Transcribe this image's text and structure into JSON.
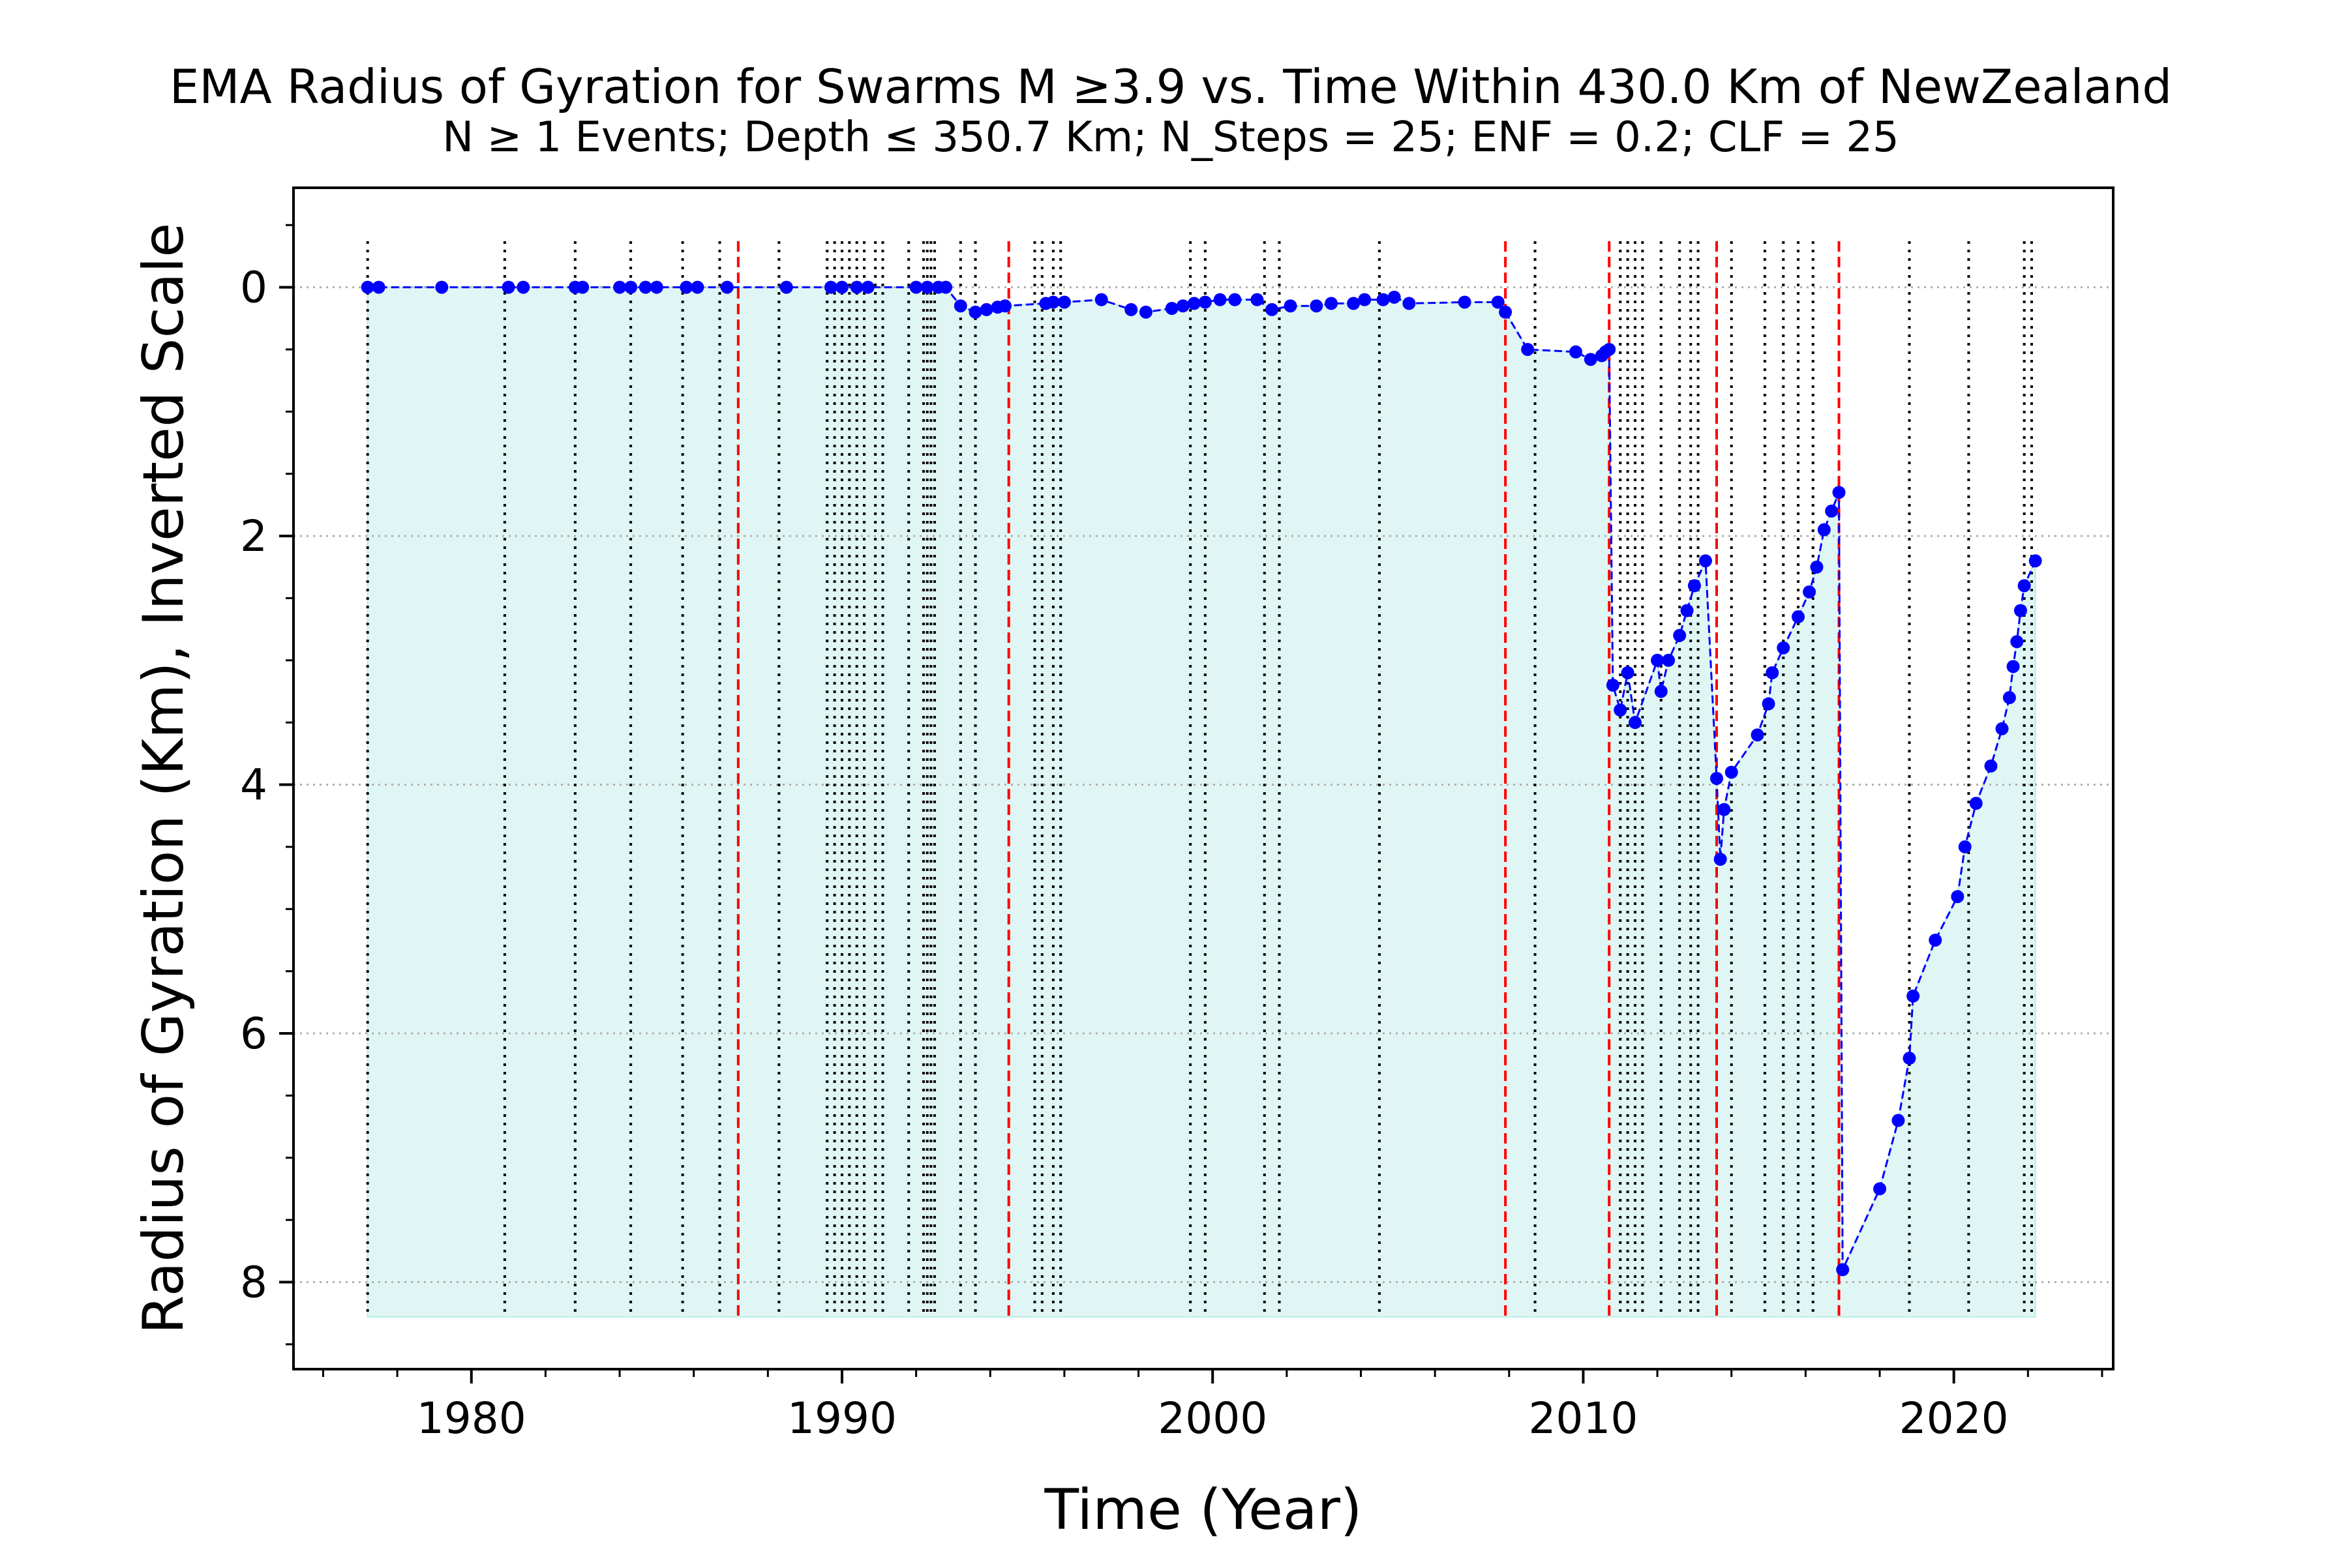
{
  "chart_data": {
    "type": "line",
    "title": "EMA Radius of Gyration for Swarms M $\\geq$3.9 vs. Time Within 430.0 Km of NewZealand",
    "title_display": "EMA Radius of Gyration for Swarms M  ≥3.9 vs. Time Within 430.0 Km of NewZealand",
    "subtitle": "N  ≥  1 Events;  Depth  ≤  350.7 Km; N_Steps = 25; ENF = 0.2; CLF = 25",
    "xlabel": "Time (Year)",
    "ylabel": "Radius of Gyration (Km), Inverted Scale",
    "xlim": [
      1975.2,
      2024.3
    ],
    "ylim": [
      8.7,
      -0.8
    ],
    "y_inverted": true,
    "x_ticks": [
      1980,
      1990,
      2000,
      2010,
      2020
    ],
    "y_ticks": [
      0,
      2,
      4,
      6,
      8
    ],
    "grid": "horizontal dotted",
    "colors": {
      "line": "#0000ff",
      "marker": "#0000ff",
      "fill": "#e0f6f4",
      "event_line": "#000000",
      "major_event_line": "#ff0000",
      "grid": "#b0b0b0"
    },
    "fill_baseline": 8.28,
    "event_lines_black": [
      1977.2,
      1980.9,
      1982.8,
      1984.3,
      1985.7,
      1986.7,
      1988.3,
      1989.6,
      1989.8,
      1990.0,
      1990.2,
      1990.4,
      1990.6,
      1990.9,
      1991.1,
      1991.8,
      1992.2,
      1992.3,
      1992.4,
      1992.5,
      1993.2,
      1993.6,
      1995.2,
      1995.4,
      1995.7,
      1995.9,
      1999.4,
      1999.8,
      2001.4,
      2001.8,
      2004.5,
      2008.7,
      2011.0,
      2011.2,
      2011.4,
      2011.6,
      2012.1,
      2012.6,
      2012.9,
      2013.1,
      2014.0,
      2014.9,
      2015.4,
      2015.8,
      2016.2,
      2018.8,
      2020.4,
      2021.9,
      2022.1
    ],
    "event_lines_red": [
      1987.2,
      1994.5,
      2007.9,
      2010.7,
      2013.6,
      2016.9
    ],
    "series": [
      {
        "x": [
          1977.2,
          1977.5,
          1979.2,
          1981.0,
          1981.4,
          1982.8,
          1983.0,
          1984.0,
          1984.3,
          1984.7,
          1985.0,
          1985.8,
          1986.1,
          1986.9,
          1988.5,
          1989.7,
          1990.0,
          1990.4,
          1990.7,
          1992.0,
          1992.3,
          1992.6,
          1992.8,
          1993.2,
          1993.6,
          1993.9,
          1994.2,
          1994.4,
          1995.5,
          1995.7,
          1996.0,
          1997.0,
          1997.8,
          1998.2,
          1998.9,
          1999.2,
          1999.5,
          1999.8,
          2000.2,
          2000.6,
          2001.2,
          2001.6,
          2002.1,
          2002.8,
          2003.2,
          2003.8,
          2004.1,
          2004.6,
          2004.9,
          2005.3,
          2006.8,
          2007.7,
          2007.9,
          2008.5,
          2009.8,
          2010.2,
          2010.5,
          2010.6,
          2010.7,
          2010.8,
          2011.0,
          2011.2,
          2011.4,
          2012.0,
          2012.1,
          2012.3,
          2012.6,
          2012.8,
          2013.0,
          2013.3,
          2013.6,
          2013.7,
          2013.8,
          2014.0,
          2014.7,
          2015.0,
          2015.1,
          2015.4,
          2015.8,
          2016.1,
          2016.3,
          2016.5,
          2016.7,
          2016.9,
          2017.0,
          2018.0,
          2018.5,
          2018.8,
          2018.9,
          2019.5,
          2020.1,
          2020.3,
          2020.6,
          2021.0,
          2021.3,
          2021.5,
          2021.6,
          2021.7,
          2021.8,
          2021.9,
          2022.2
        ],
        "y": [
          0.0,
          0.0,
          0.0,
          0.0,
          0.0,
          0.0,
          0.0,
          0.0,
          0.0,
          0.0,
          0.0,
          0.0,
          0.0,
          0.0,
          0.0,
          0.0,
          0.0,
          0.0,
          0.0,
          0.0,
          0.0,
          0.0,
          0.0,
          0.15,
          0.2,
          0.18,
          0.16,
          0.15,
          0.13,
          0.12,
          0.12,
          0.1,
          0.18,
          0.2,
          0.17,
          0.15,
          0.13,
          0.12,
          0.1,
          0.1,
          0.1,
          0.18,
          0.15,
          0.15,
          0.13,
          0.13,
          0.1,
          0.1,
          0.08,
          0.13,
          0.12,
          0.12,
          0.2,
          0.5,
          0.52,
          0.58,
          0.55,
          0.52,
          0.5,
          3.2,
          3.4,
          3.1,
          3.5,
          3.0,
          3.25,
          3.0,
          2.8,
          2.6,
          2.4,
          2.2,
          3.95,
          4.6,
          4.2,
          3.9,
          3.6,
          3.35,
          3.1,
          2.9,
          2.65,
          2.45,
          2.25,
          1.95,
          1.8,
          1.65,
          7.9,
          7.25,
          6.7,
          6.2,
          5.7,
          5.25,
          4.9,
          4.5,
          4.15,
          3.85,
          3.55,
          3.3,
          3.05,
          2.85,
          2.6,
          2.4,
          2.2
        ]
      }
    ]
  }
}
